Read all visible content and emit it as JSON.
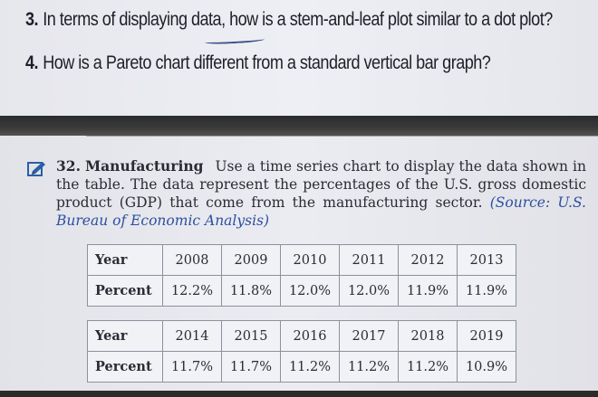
{
  "questions": [
    {
      "number": "3.",
      "text": "In terms of displaying data, how is a stem-and-leaf plot similar to a dot plot?"
    },
    {
      "number": "4.",
      "text": "How is a Pareto chart different from a standard vertical bar graph?"
    }
  ],
  "exercise": {
    "number": "32.",
    "heading": "Manufacturing",
    "body": "Use a time series chart to display the data shown in the table. The data represent the percentages of the U.S. gross domestic product (GDP) that come from the manufacturing sector.",
    "source": "(Source: U.S. Bureau of Economic Analysis)",
    "icon": "pencil-arrow-icon"
  },
  "tables": [
    {
      "row_headers": [
        "Year",
        "Percent"
      ],
      "years": [
        "2008",
        "2009",
        "2010",
        "2011",
        "2012",
        "2013"
      ],
      "percents": [
        "12.2%",
        "11.8%",
        "12.0%",
        "12.0%",
        "11.9%",
        "11.9%"
      ]
    },
    {
      "row_headers": [
        "Year",
        "Percent"
      ],
      "years": [
        "2014",
        "2015",
        "2016",
        "2017",
        "2018",
        "2019"
      ],
      "percents": [
        "11.7%",
        "11.7%",
        "11.2%",
        "11.2%",
        "11.2%",
        "10.9%"
      ]
    }
  ],
  "colors": {
    "page": "#e8e9ee",
    "text": "#2a2c34",
    "source_blue": "#2d4fa0",
    "table_border": "#8d919c"
  }
}
